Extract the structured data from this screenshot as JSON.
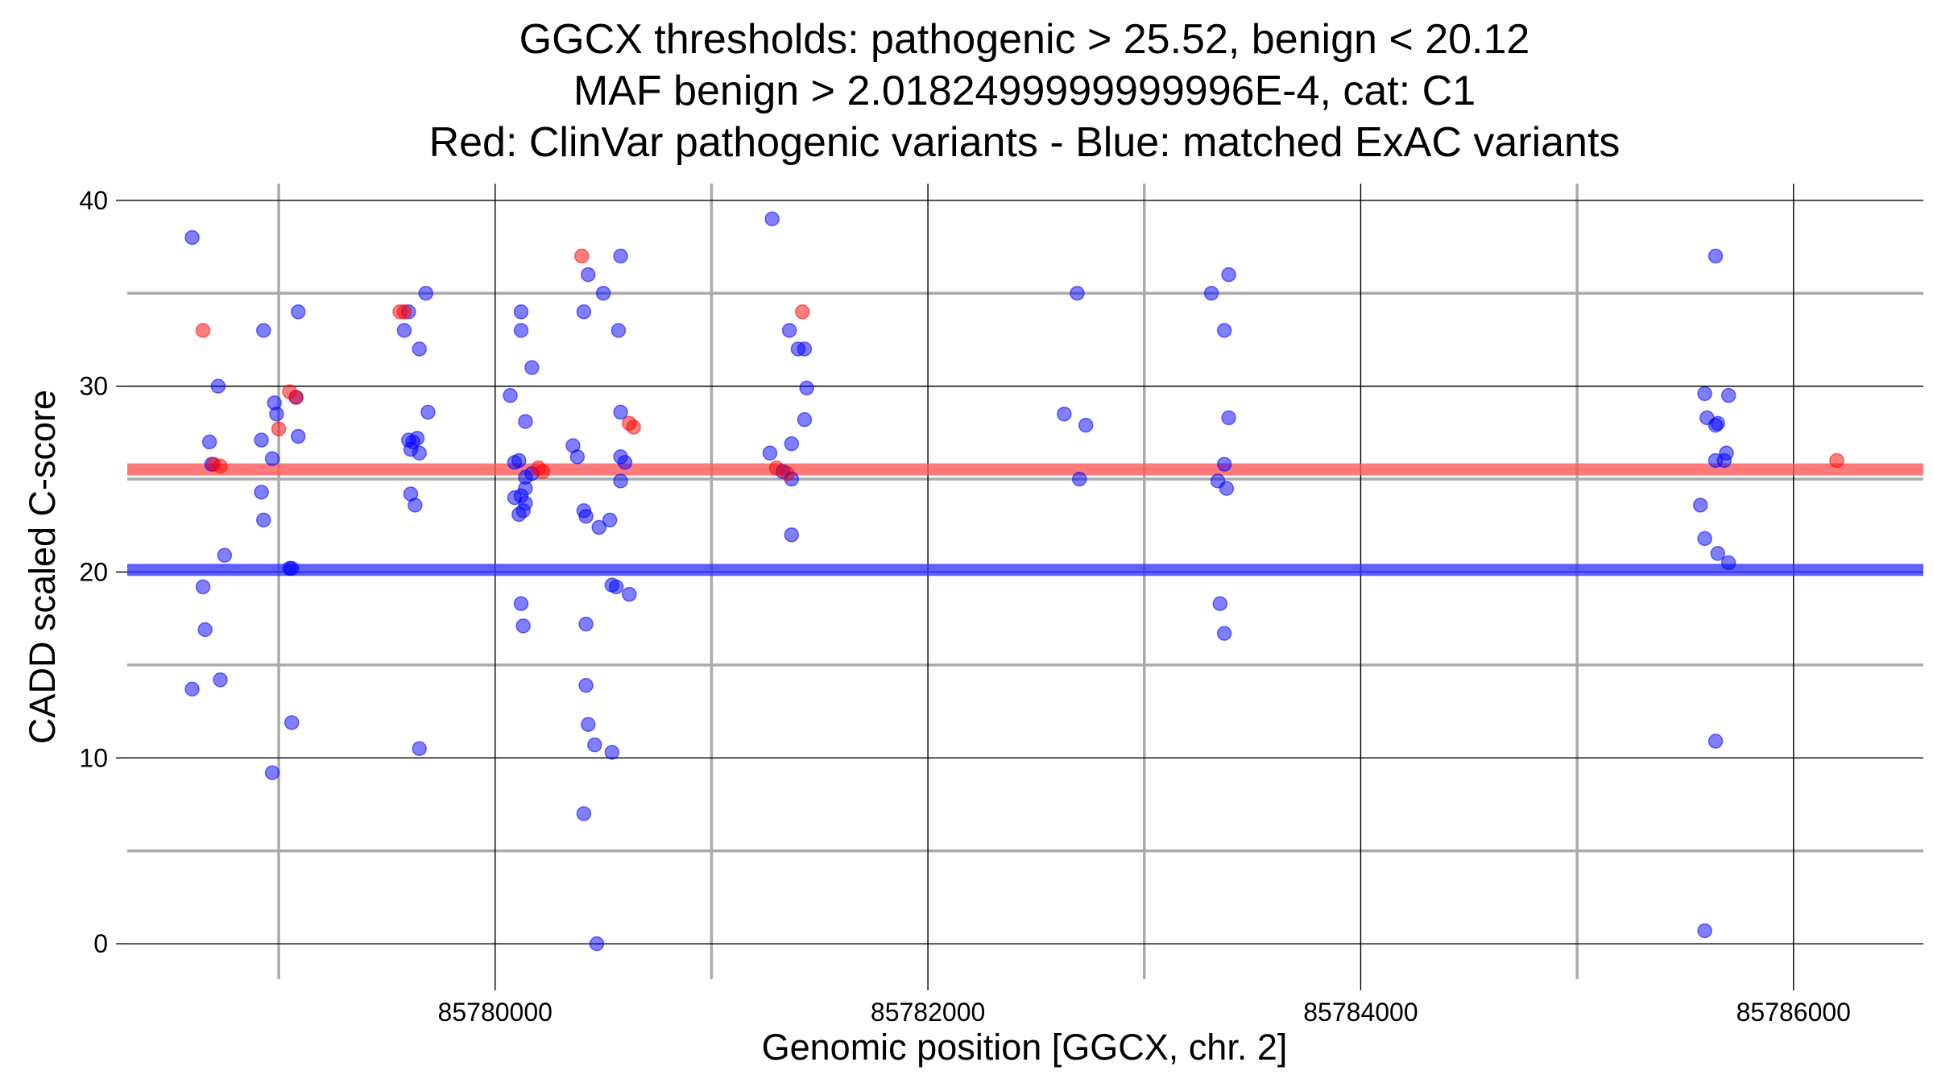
{
  "chart_data": {
    "type": "scatter",
    "title": [
      "GGCX thresholds: pathogenic > 25.52, benign < 20.12",
      "MAF benign > 2.0182499999999996E-4, cat: C1",
      "Red: ClinVar pathogenic variants - Blue: matched ExAC variants"
    ],
    "xlabel": "Genomic position [GGCX, chr. 2]",
    "ylabel": "CADD scaled C-score",
    "xlim": [
      85778300,
      85786600
    ],
    "ylim": [
      -1.9,
      40.9
    ],
    "x_ticks": [
      85780000,
      85782000,
      85784000,
      85786000
    ],
    "x_tick_labels": [
      "85780000",
      "85782000",
      "85784000",
      "85786000"
    ],
    "x_minor_gridlines": [
      85779000,
      85781000,
      85783000,
      85785000
    ],
    "y_ticks": [
      0,
      10,
      20,
      30,
      40
    ],
    "y_tick_labels": [
      "0",
      "10",
      "20",
      "30",
      "40"
    ],
    "y_minor_gridlines": [
      5,
      15,
      25,
      35
    ],
    "grid": true,
    "colors": {
      "pathogenic": "#ff0000",
      "benign": "#0000ff",
      "pathogenic_line": "#ff5555",
      "benign_line": "#3333ff",
      "grid_major": "#000000",
      "grid_minor": "#aaaaaa"
    },
    "thresholds": {
      "pathogenic": 25.52,
      "benign": 20.12
    },
    "series": [
      {
        "name": "ClinVar pathogenic variants",
        "color": "#ff0000",
        "points": [
          [
            85778650,
            33
          ],
          [
            85779580,
            34
          ],
          [
            85779560,
            34
          ],
          [
            85779000,
            27.7
          ],
          [
            85779050,
            29.7
          ],
          [
            85779080,
            29.4
          ],
          [
            85778700,
            25.8
          ],
          [
            85778730,
            25.7
          ],
          [
            85780200,
            25.6
          ],
          [
            85780220,
            25.4
          ],
          [
            85780400,
            37
          ],
          [
            85780620,
            28
          ],
          [
            85780640,
            27.8
          ],
          [
            85781420,
            34
          ],
          [
            85781300,
            25.6
          ],
          [
            85781350,
            25.3
          ],
          [
            85786200,
            26
          ]
        ]
      },
      {
        "name": "matched ExAC variants",
        "color": "#0000ff",
        "points": [
          [
            85778600,
            38
          ],
          [
            85778720,
            30
          ],
          [
            85778680,
            27
          ],
          [
            85778690,
            25.8
          ],
          [
            85778750,
            20.9
          ],
          [
            85778650,
            19.2
          ],
          [
            85778660,
            16.9
          ],
          [
            85778600,
            13.7
          ],
          [
            85778730,
            14.2
          ],
          [
            85778930,
            33
          ],
          [
            85778920,
            27.1
          ],
          [
            85778920,
            24.3
          ],
          [
            85778930,
            22.8
          ],
          [
            85778980,
            29.1
          ],
          [
            85778990,
            28.5
          ],
          [
            85778970,
            26.1
          ],
          [
            85779050,
            20.2
          ],
          [
            85779060,
            20.2
          ],
          [
            85779060,
            11.9
          ],
          [
            85778970,
            9.2
          ],
          [
            85779090,
            34
          ],
          [
            85779090,
            27.3
          ],
          [
            85779080,
            29.4
          ],
          [
            85779580,
            33
          ],
          [
            85779600,
            34
          ],
          [
            85779680,
            35
          ],
          [
            85779650,
            32
          ],
          [
            85779600,
            27.1
          ],
          [
            85779620,
            27
          ],
          [
            85779640,
            27.2
          ],
          [
            85779610,
            26.6
          ],
          [
            85779650,
            26.4
          ],
          [
            85779690,
            28.6
          ],
          [
            85779610,
            24.2
          ],
          [
            85779630,
            23.6
          ],
          [
            85779650,
            10.5
          ],
          [
            85780070,
            29.5
          ],
          [
            85780120,
            34
          ],
          [
            85780120,
            33
          ],
          [
            85780170,
            31
          ],
          [
            85780140,
            28.1
          ],
          [
            85780090,
            25.9
          ],
          [
            85780110,
            26
          ],
          [
            85780140,
            25.1
          ],
          [
            85780170,
            25.3
          ],
          [
            85780140,
            24.5
          ],
          [
            85780090,
            24
          ],
          [
            85780120,
            24.1
          ],
          [
            85780140,
            23.7
          ],
          [
            85780110,
            23.1
          ],
          [
            85780130,
            23.3
          ],
          [
            85780120,
            18.3
          ],
          [
            85780130,
            17.1
          ],
          [
            85780360,
            26.8
          ],
          [
            85780380,
            26.2
          ],
          [
            85780430,
            36
          ],
          [
            85780500,
            35
          ],
          [
            85780410,
            34
          ],
          [
            85780410,
            23.3
          ],
          [
            85780420,
            23
          ],
          [
            85780480,
            22.4
          ],
          [
            85780530,
            22.8
          ],
          [
            85780420,
            17.2
          ],
          [
            85780420,
            13.9
          ],
          [
            85780430,
            11.8
          ],
          [
            85780460,
            10.7
          ],
          [
            85780540,
            10.3
          ],
          [
            85780410,
            7
          ],
          [
            85780470,
            0
          ],
          [
            85780580,
            37
          ],
          [
            85780570,
            33
          ],
          [
            85780580,
            28.6
          ],
          [
            85780580,
            26.2
          ],
          [
            85780600,
            25.9
          ],
          [
            85780580,
            24.9
          ],
          [
            85780540,
            19.3
          ],
          [
            85780560,
            19.2
          ],
          [
            85780620,
            18.8
          ],
          [
            85781280,
            39
          ],
          [
            85781360,
            33
          ],
          [
            85781400,
            32
          ],
          [
            85781430,
            32
          ],
          [
            85781440,
            29.9
          ],
          [
            85781430,
            28.2
          ],
          [
            85781370,
            26.9
          ],
          [
            85781270,
            26.4
          ],
          [
            85781330,
            25.4
          ],
          [
            85781370,
            25
          ],
          [
            85781370,
            22
          ],
          [
            85782690,
            35
          ],
          [
            85782630,
            28.5
          ],
          [
            85782730,
            27.9
          ],
          [
            85782700,
            25
          ],
          [
            85783310,
            35
          ],
          [
            85783390,
            36
          ],
          [
            85783370,
            33
          ],
          [
            85783390,
            28.3
          ],
          [
            85783370,
            25.8
          ],
          [
            85783340,
            24.9
          ],
          [
            85783380,
            24.5
          ],
          [
            85783350,
            18.3
          ],
          [
            85783370,
            16.7
          ],
          [
            85785640,
            37
          ],
          [
            85785590,
            29.6
          ],
          [
            85785700,
            29.5
          ],
          [
            85785600,
            28.3
          ],
          [
            85785640,
            27.9
          ],
          [
            85785650,
            28
          ],
          [
            85785690,
            26.4
          ],
          [
            85785640,
            26
          ],
          [
            85785680,
            26
          ],
          [
            85785570,
            23.6
          ],
          [
            85785590,
            21.8
          ],
          [
            85785650,
            21
          ],
          [
            85785700,
            20.5
          ],
          [
            85785640,
            10.9
          ],
          [
            85785590,
            0.7
          ]
        ]
      }
    ]
  }
}
